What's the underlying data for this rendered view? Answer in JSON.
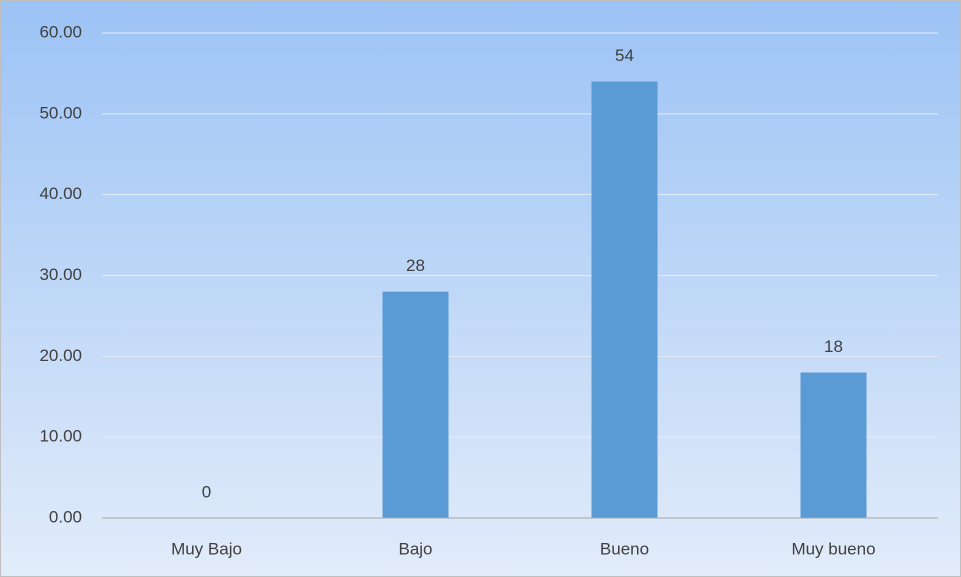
{
  "chart_data": {
    "type": "bar",
    "categories": [
      "Muy Bajo",
      "Bajo",
      "Bueno",
      "Muy bueno"
    ],
    "values": [
      0,
      28,
      54,
      18
    ],
    "color": "#5b9bd5",
    "ylim": [
      0,
      60
    ],
    "yticks": [
      {
        "value": 0,
        "label": "0.00"
      },
      {
        "value": 10,
        "label": "10.00"
      },
      {
        "value": 20,
        "label": "20.00"
      },
      {
        "value": 30,
        "label": "30.00"
      },
      {
        "value": 40,
        "label": "40.00"
      },
      {
        "value": 50,
        "label": "50.00"
      },
      {
        "value": 60,
        "label": "60.00"
      }
    ],
    "grid": true
  }
}
